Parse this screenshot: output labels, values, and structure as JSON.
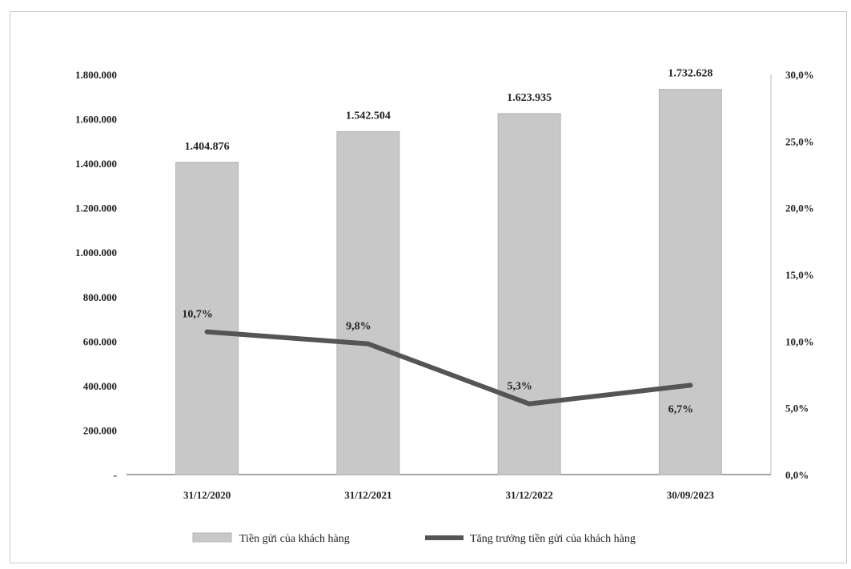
{
  "chart_data": {
    "type": "bar",
    "categories": [
      "31/12/2020",
      "31/12/2021",
      "31/12/2022",
      "30/09/2023"
    ],
    "series": [
      {
        "name": "Tiền gửi của khách hàng",
        "type": "bar",
        "axis": "left",
        "values": [
          1404876,
          1542504,
          1623935,
          1732628
        ],
        "labels": [
          "1.404.876",
          "1.542.504",
          "1.623.935",
          "1.732.628"
        ],
        "color": "#c8c8c8"
      },
      {
        "name": "Tăng trưởng tiền gửi của khách hàng",
        "type": "line",
        "axis": "right",
        "values": [
          10.7,
          9.8,
          5.3,
          6.7
        ],
        "labels": [
          "10,7%",
          "9,8%",
          "5,3%",
          "6,7%"
        ],
        "color": "#555555"
      }
    ],
    "y_left": {
      "ylim": [
        0,
        1800000
      ],
      "ticks": [
        0,
        200000,
        400000,
        600000,
        800000,
        1000000,
        1200000,
        1400000,
        1600000,
        1800000
      ],
      "tick_labels": [
        "-",
        "200.000",
        "400.000",
        "600.000",
        "800.000",
        "1.000.000",
        "1.200.000",
        "1.400.000",
        "1.600.000",
        "1.800.000"
      ]
    },
    "y_right": {
      "ylim": [
        0,
        30
      ],
      "ticks": [
        0,
        5,
        10,
        15,
        20,
        25,
        30
      ],
      "tick_labels": [
        "0,0%",
        "5,0%",
        "10,0%",
        "15,0%",
        "20,0%",
        "25,0%",
        "30,0%"
      ]
    },
    "grid": false,
    "legend": "bottom"
  }
}
